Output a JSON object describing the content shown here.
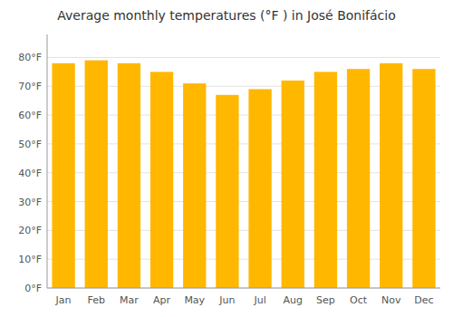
{
  "chart_data": {
    "type": "bar",
    "title": "Average monthly temperatures (°F ) in José Bonifácio",
    "categories": [
      "Jan",
      "Feb",
      "Mar",
      "Apr",
      "May",
      "Jun",
      "Jul",
      "Aug",
      "Sep",
      "Oct",
      "Nov",
      "Dec"
    ],
    "values": [
      78,
      79,
      78,
      75,
      71,
      67,
      69,
      72,
      75,
      76,
      78,
      76
    ],
    "color": "#FFB700",
    "ylim": [
      0,
      88
    ],
    "yticks": [
      {
        "value": 0,
        "label": "0°F"
      },
      {
        "value": 10,
        "label": "10°F"
      },
      {
        "value": 20,
        "label": "20°F"
      },
      {
        "value": 30,
        "label": "30°F"
      },
      {
        "value": 40,
        "label": "40°F"
      },
      {
        "value": 50,
        "label": "50°F"
      },
      {
        "value": 60,
        "label": "60°F"
      },
      {
        "value": 70,
        "label": "70°F"
      },
      {
        "value": 80,
        "label": "80°F"
      }
    ],
    "grid": true
  }
}
